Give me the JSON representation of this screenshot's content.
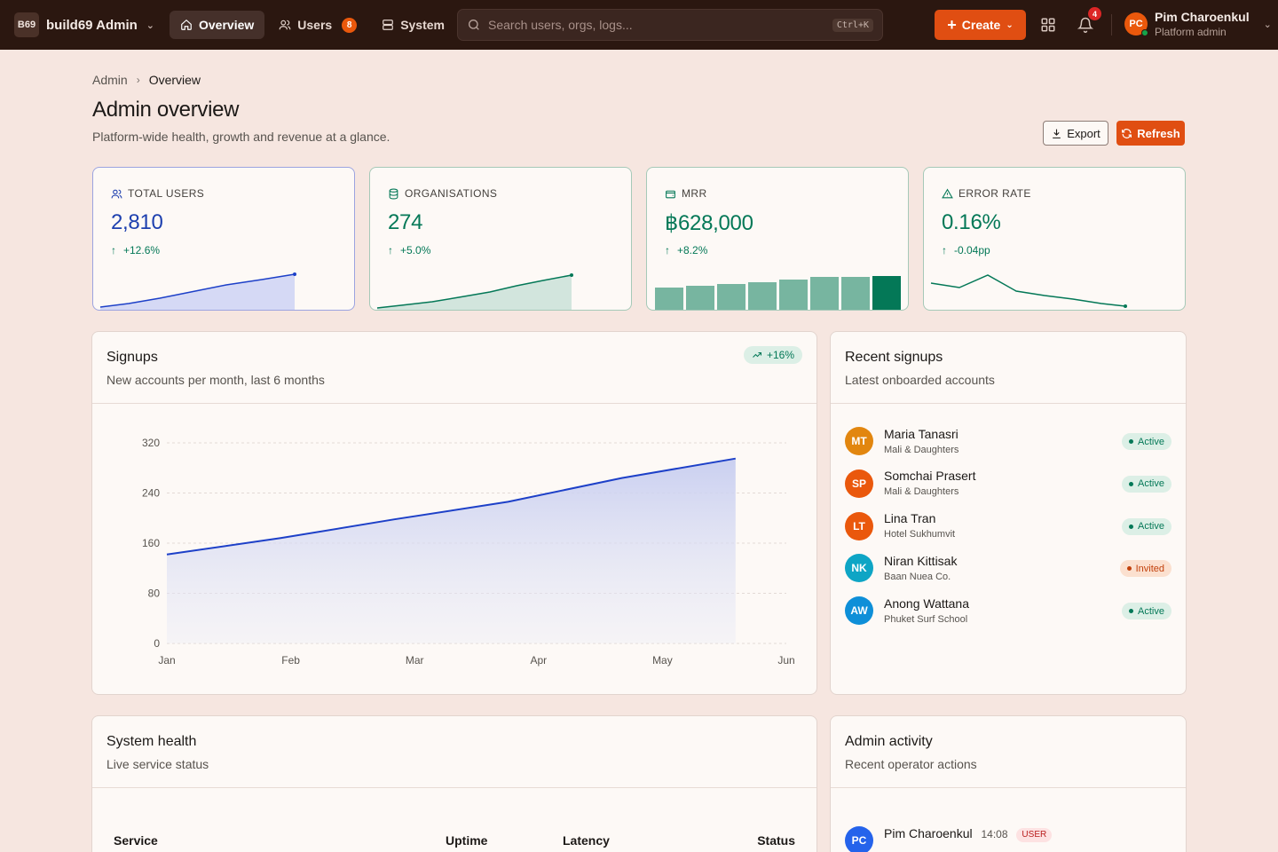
{
  "app": {
    "badge": "B69",
    "name": "build69 Admin"
  },
  "nav": [
    {
      "label": "Overview",
      "icon": "home-icon"
    },
    {
      "label": "Users",
      "icon": "users-icon",
      "badge": "8"
    },
    {
      "label": "System",
      "icon": "server-icon"
    }
  ],
  "search": {
    "placeholder": "Search users, orgs, logs...",
    "shortcut": "Ctrl+K"
  },
  "create_label": "Create",
  "notifications_count": "4",
  "current_user": {
    "initials": "PC",
    "name": "Pim Charoenkul",
    "role": "Platform admin"
  },
  "breadcrumb": [
    "Admin",
    "Overview"
  ],
  "page": {
    "title": "Admin overview",
    "subtitle": "Platform-wide health, growth and revenue at a glance.",
    "export_label": "Export",
    "refresh_label": "Refresh"
  },
  "stats": [
    {
      "label": "TOTAL USERS",
      "value": "2,810",
      "delta": "+12.6%",
      "icon": "users-icon",
      "color": "#1e40af"
    },
    {
      "label": "ORGANISATIONS",
      "value": "274",
      "delta": "+5.0%",
      "icon": "database-icon",
      "color": "#047857"
    },
    {
      "label": "MRR",
      "value": "฿628,000",
      "delta": "+8.2%",
      "icon": "wallet-icon",
      "color": "#047857"
    },
    {
      "label": "ERROR RATE",
      "value": "0.16%",
      "delta": "-0.04pp",
      "icon": "alert-triangle-icon",
      "color": "#047857"
    }
  ],
  "signups": {
    "title": "Signups",
    "subtitle": "New accounts per month, last 6 months",
    "trend": "+16%"
  },
  "chart_data": {
    "type": "area",
    "categories": [
      "Jan",
      "Feb",
      "Mar",
      "Apr",
      "May",
      "Jun"
    ],
    "series": [
      {
        "values": [
          142,
          168,
          198,
          226,
          264,
          295
        ]
      }
    ],
    "yticks": [
      0,
      80,
      160,
      240,
      320
    ],
    "ylim": [
      0,
      320
    ],
    "grid": true,
    "colors": {
      "line": "#1d40c8",
      "fill": "#c7cdf0"
    }
  },
  "recent_signups": {
    "title": "Recent signups",
    "subtitle": "Latest onboarded accounts",
    "items": [
      {
        "initials": "MT",
        "name": "Maria Tanasri",
        "org": "Mali & Daughters",
        "status": "Active",
        "color": "#e2860f"
      },
      {
        "initials": "SP",
        "name": "Somchai Prasert",
        "org": "Mali & Daughters",
        "status": "Active",
        "color": "#ea580c"
      },
      {
        "initials": "LT",
        "name": "Lina Tran",
        "org": "Hotel Sukhumvit",
        "status": "Active",
        "color": "#ea580c"
      },
      {
        "initials": "NK",
        "name": "Niran Kittisak",
        "org": "Baan Nuea Co.",
        "status": "Invited",
        "color": "#0ea5c5"
      },
      {
        "initials": "AW",
        "name": "Anong Wattana",
        "org": "Phuket Surf School",
        "status": "Active",
        "color": "#0e8fd8"
      }
    ]
  },
  "system_health": {
    "title": "System health",
    "subtitle": "Live service status",
    "columns": [
      "Service",
      "Uptime",
      "Latency",
      "Status"
    ]
  },
  "admin_activity": {
    "title": "Admin activity",
    "subtitle": "Recent operator actions",
    "items": [
      {
        "initials": "PC",
        "name": "Pim Charoenkul",
        "time": "14:08",
        "tag": "USER"
      }
    ]
  }
}
